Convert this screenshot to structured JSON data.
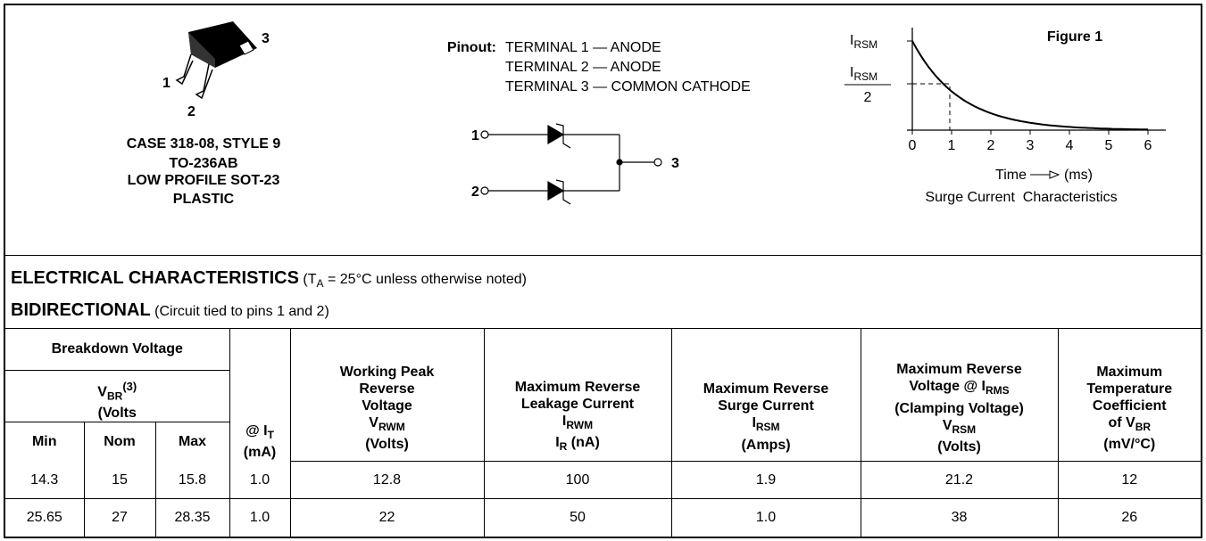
{
  "package": {
    "pins": [
      "1",
      "2",
      "3"
    ],
    "lines": [
      "CASE 318-08, STYLE 9",
      "TO-236AB",
      "LOW PROFILE SOT-23",
      "PLASTIC"
    ]
  },
  "pinout": {
    "label": "Pinout:",
    "lines": [
      "TERMINAL 1 — ANODE",
      "TERMINAL 2 — ANODE",
      "TERMINAL 3 — COMMON CATHODE"
    ],
    "schematic_pins": [
      "1",
      "2",
      "3"
    ]
  },
  "figure": {
    "title": "Figure 1",
    "y_labels": [
      {
        "main": "I",
        "sub": "RSM"
      },
      {
        "main": "I",
        "sub": "RSM",
        "denominator": "2"
      }
    ],
    "x_ticks": [
      "0",
      "1",
      "2",
      "3",
      "4",
      "5",
      "6"
    ],
    "x_label": "Time",
    "x_unit": "(ms)",
    "caption": "Surge Current  Characteristics"
  },
  "conditions": {
    "title": "ELECTRICAL CHARACTERISTICS",
    "note_start": "(T",
    "note_sub": "A",
    "note_end": " = 25°C unless otherwise noted)",
    "mode": "BIDIRECTIONAL",
    "mode_note": "(Circuit tied to pins 1 and 2)"
  },
  "table": {
    "group": "Breakdown Voltage",
    "vbr": {
      "main": "V",
      "sub": "BR",
      "sup": "(3)",
      "unit": "(Volts"
    },
    "limits": [
      "Min",
      "Nom",
      "Max"
    ],
    "it": {
      "main": "@ I",
      "sub": "T",
      "unit": "(mA)"
    },
    "working": {
      "lines": [
        "Working Peak",
        "Reverse",
        "Voltage"
      ],
      "main": "V",
      "sub": "RWM",
      "unit": "(Volts)"
    },
    "leakage": {
      "lines": [
        "Maximum Reverse",
        "Leakage Current"
      ],
      "main": "I",
      "sub": "RWM",
      "main2": "I",
      "sub2": "R",
      "unit": " (nA)"
    },
    "surge": {
      "lines": [
        "Maximum Reverse",
        "Surge Current"
      ],
      "main": "I",
      "sub": "RSM",
      "unit": "(Amps)"
    },
    "clamping": {
      "line1": "Maximum Reverse",
      "line2": "Voltage @ I",
      "line2_sub": "RMS",
      "line3": "(Clamping Voltage)",
      "main": "V",
      "sub": "RSM",
      "unit": "(Volts)"
    },
    "temp": {
      "lines": [
        "Maximum",
        "Temperature",
        "Coefficient"
      ],
      "main": "of V",
      "sub": "BR",
      "unit": "(mV/°C)"
    },
    "rows": [
      [
        "14.3",
        "15",
        "15.8",
        "1.0",
        "12.8",
        "100",
        "1.9",
        "21.2",
        "12"
      ],
      [
        "25.65",
        "27",
        "28.35",
        "1.0",
        "22",
        "50",
        "1.0",
        "38",
        "26"
      ]
    ]
  }
}
